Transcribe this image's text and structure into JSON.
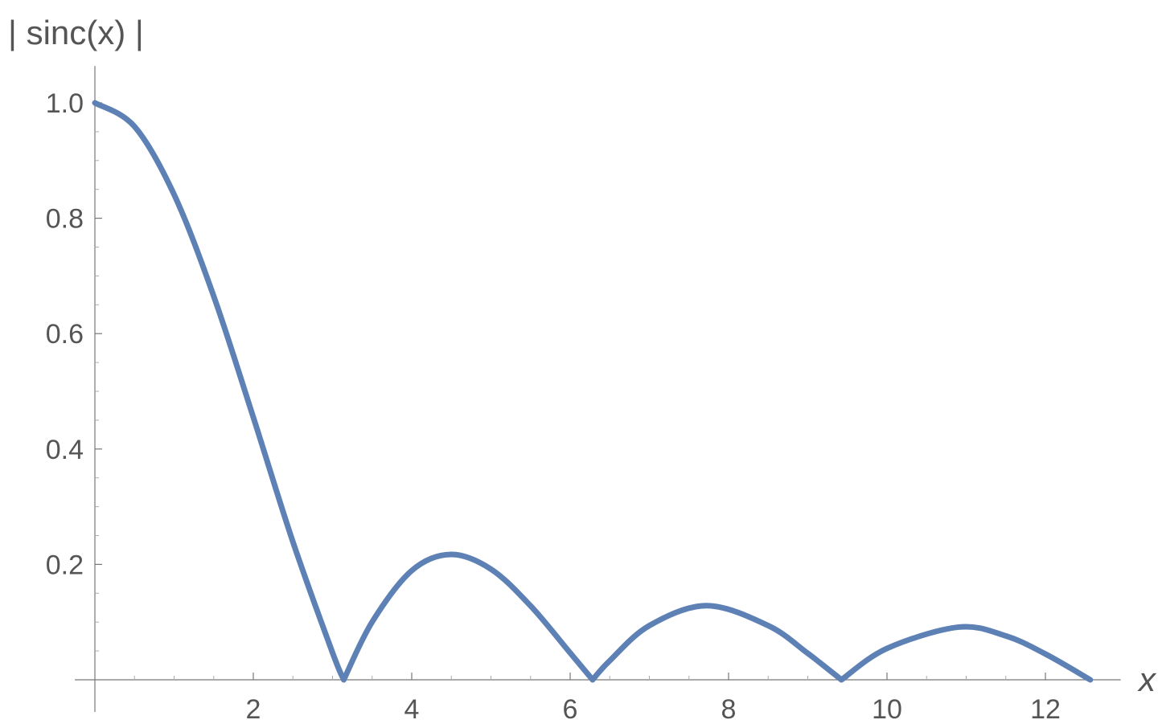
{
  "chart_data": {
    "type": "line",
    "title": "",
    "xlabel": "x",
    "ylabel": "| sinc(x) |",
    "xlim": [
      -0.05,
      12.95
    ],
    "ylim": [
      0,
      1.05
    ],
    "xticks": [
      2,
      4,
      6,
      8,
      10,
      12
    ],
    "xtick_labels": [
      "2",
      "4",
      "6",
      "8",
      "10",
      "12"
    ],
    "yticks": [
      0.2,
      0.4,
      0.6,
      0.8,
      1.0
    ],
    "ytick_labels": [
      "0.2",
      "0.4",
      "0.6",
      "0.8",
      "1.0"
    ],
    "grid": false,
    "series": [
      {
        "color": "#5e81b5",
        "x": [
          0.0,
          0.5,
          1.0,
          1.5,
          2.0,
          2.5,
          3.0,
          3.1416,
          3.5,
          4.0,
          4.4934,
          5.0,
          5.5,
          6.0,
          6.2832,
          6.5,
          7.0,
          7.7253,
          8.5,
          9.0,
          9.4248,
          10.0,
          10.9041,
          11.5,
          12.0,
          12.5664
        ],
        "y": [
          1.0,
          0.959,
          0.841,
          0.665,
          0.455,
          0.239,
          0.047,
          0.0,
          0.1002,
          0.1892,
          0.2172,
          0.1918,
          0.1282,
          0.0466,
          0.0,
          0.0331,
          0.0939,
          0.1284,
          0.0939,
          0.0458,
          0.0,
          0.0544,
          0.0913,
          0.0761,
          0.0447,
          0.0
        ]
      }
    ]
  }
}
